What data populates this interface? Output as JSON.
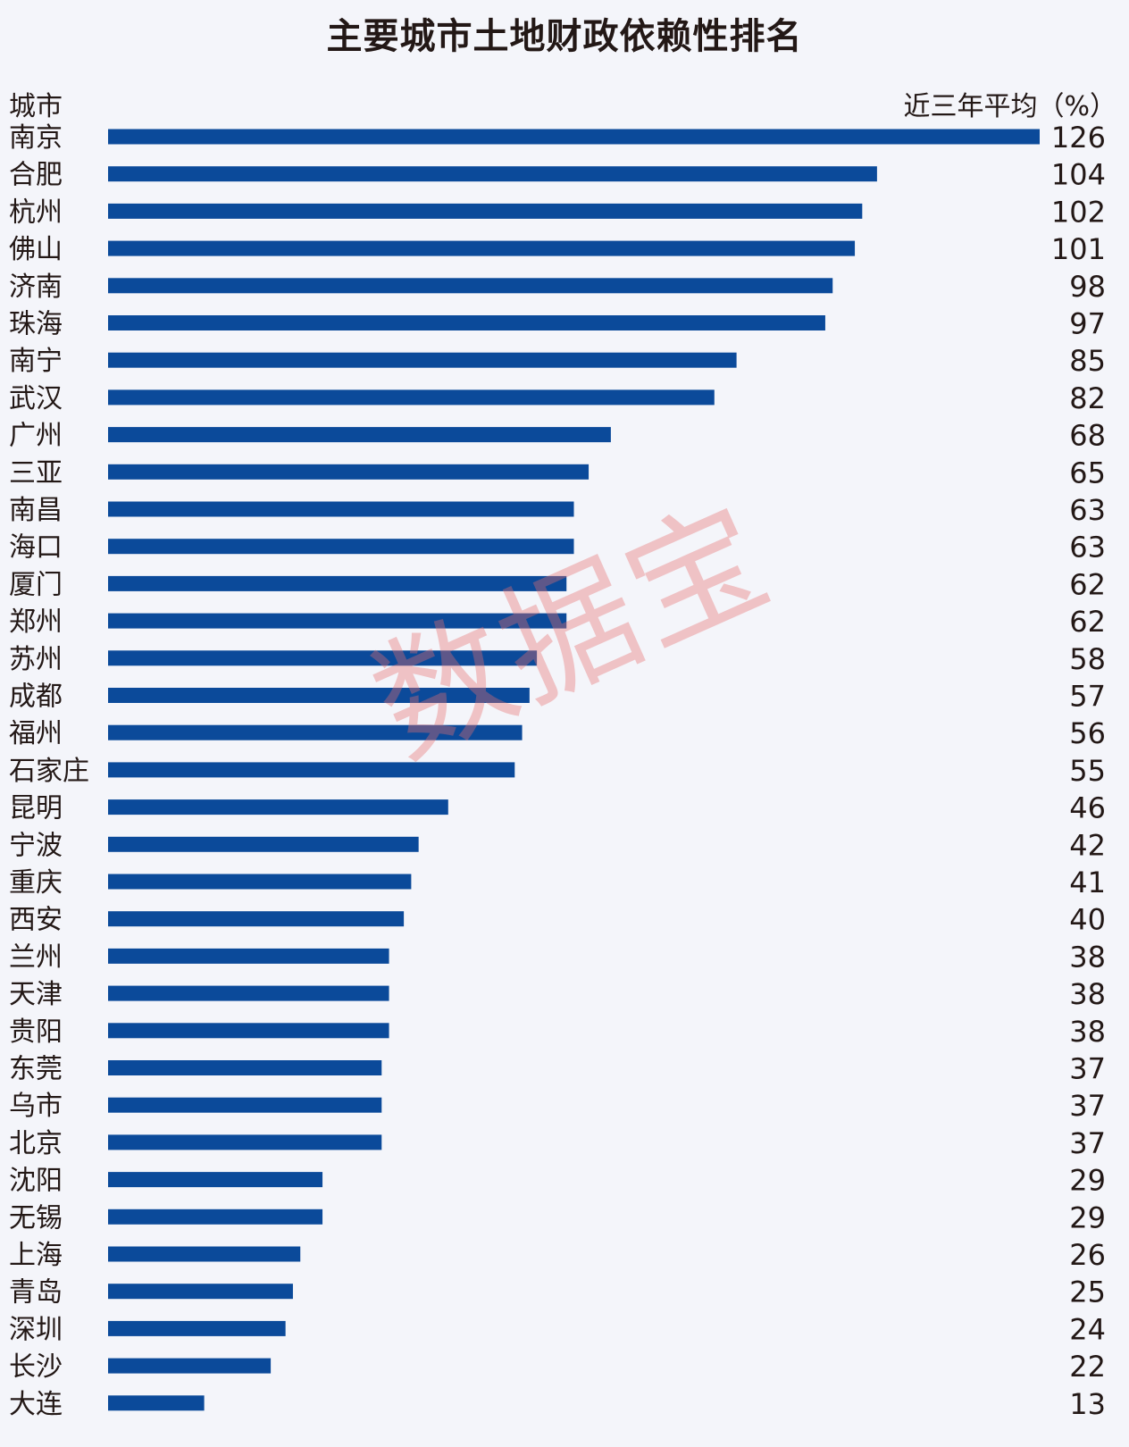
{
  "watermark": "数据宝",
  "chart_data": {
    "type": "bar",
    "orientation": "horizontal",
    "title": "主要城市土地财政依赖性排名",
    "category_header": "城市",
    "value_header": "近三年平均（%）",
    "bar_color": "#0b4a9a",
    "categories": [
      "南京",
      "合肥",
      "杭州",
      "佛山",
      "济南",
      "珠海",
      "南宁",
      "武汉",
      "广州",
      "三亚",
      "南昌",
      "海口",
      "厦门",
      "郑州",
      "苏州",
      "成都",
      "福州",
      "石家庄",
      "昆明",
      "宁波",
      "重庆",
      "西安",
      "兰州",
      "天津",
      "贵阳",
      "东莞",
      "乌市",
      "北京",
      "沈阳",
      "无锡",
      "上海",
      "青岛",
      "深圳",
      "长沙",
      "大连"
    ],
    "values": [
      126,
      104,
      102,
      101,
      98,
      97,
      85,
      82,
      68,
      65,
      63,
      63,
      62,
      62,
      58,
      57,
      56,
      55,
      46,
      42,
      41,
      40,
      38,
      38,
      38,
      37,
      37,
      37,
      29,
      29,
      26,
      25,
      24,
      22,
      13
    ],
    "xlim": [
      0,
      126
    ]
  }
}
